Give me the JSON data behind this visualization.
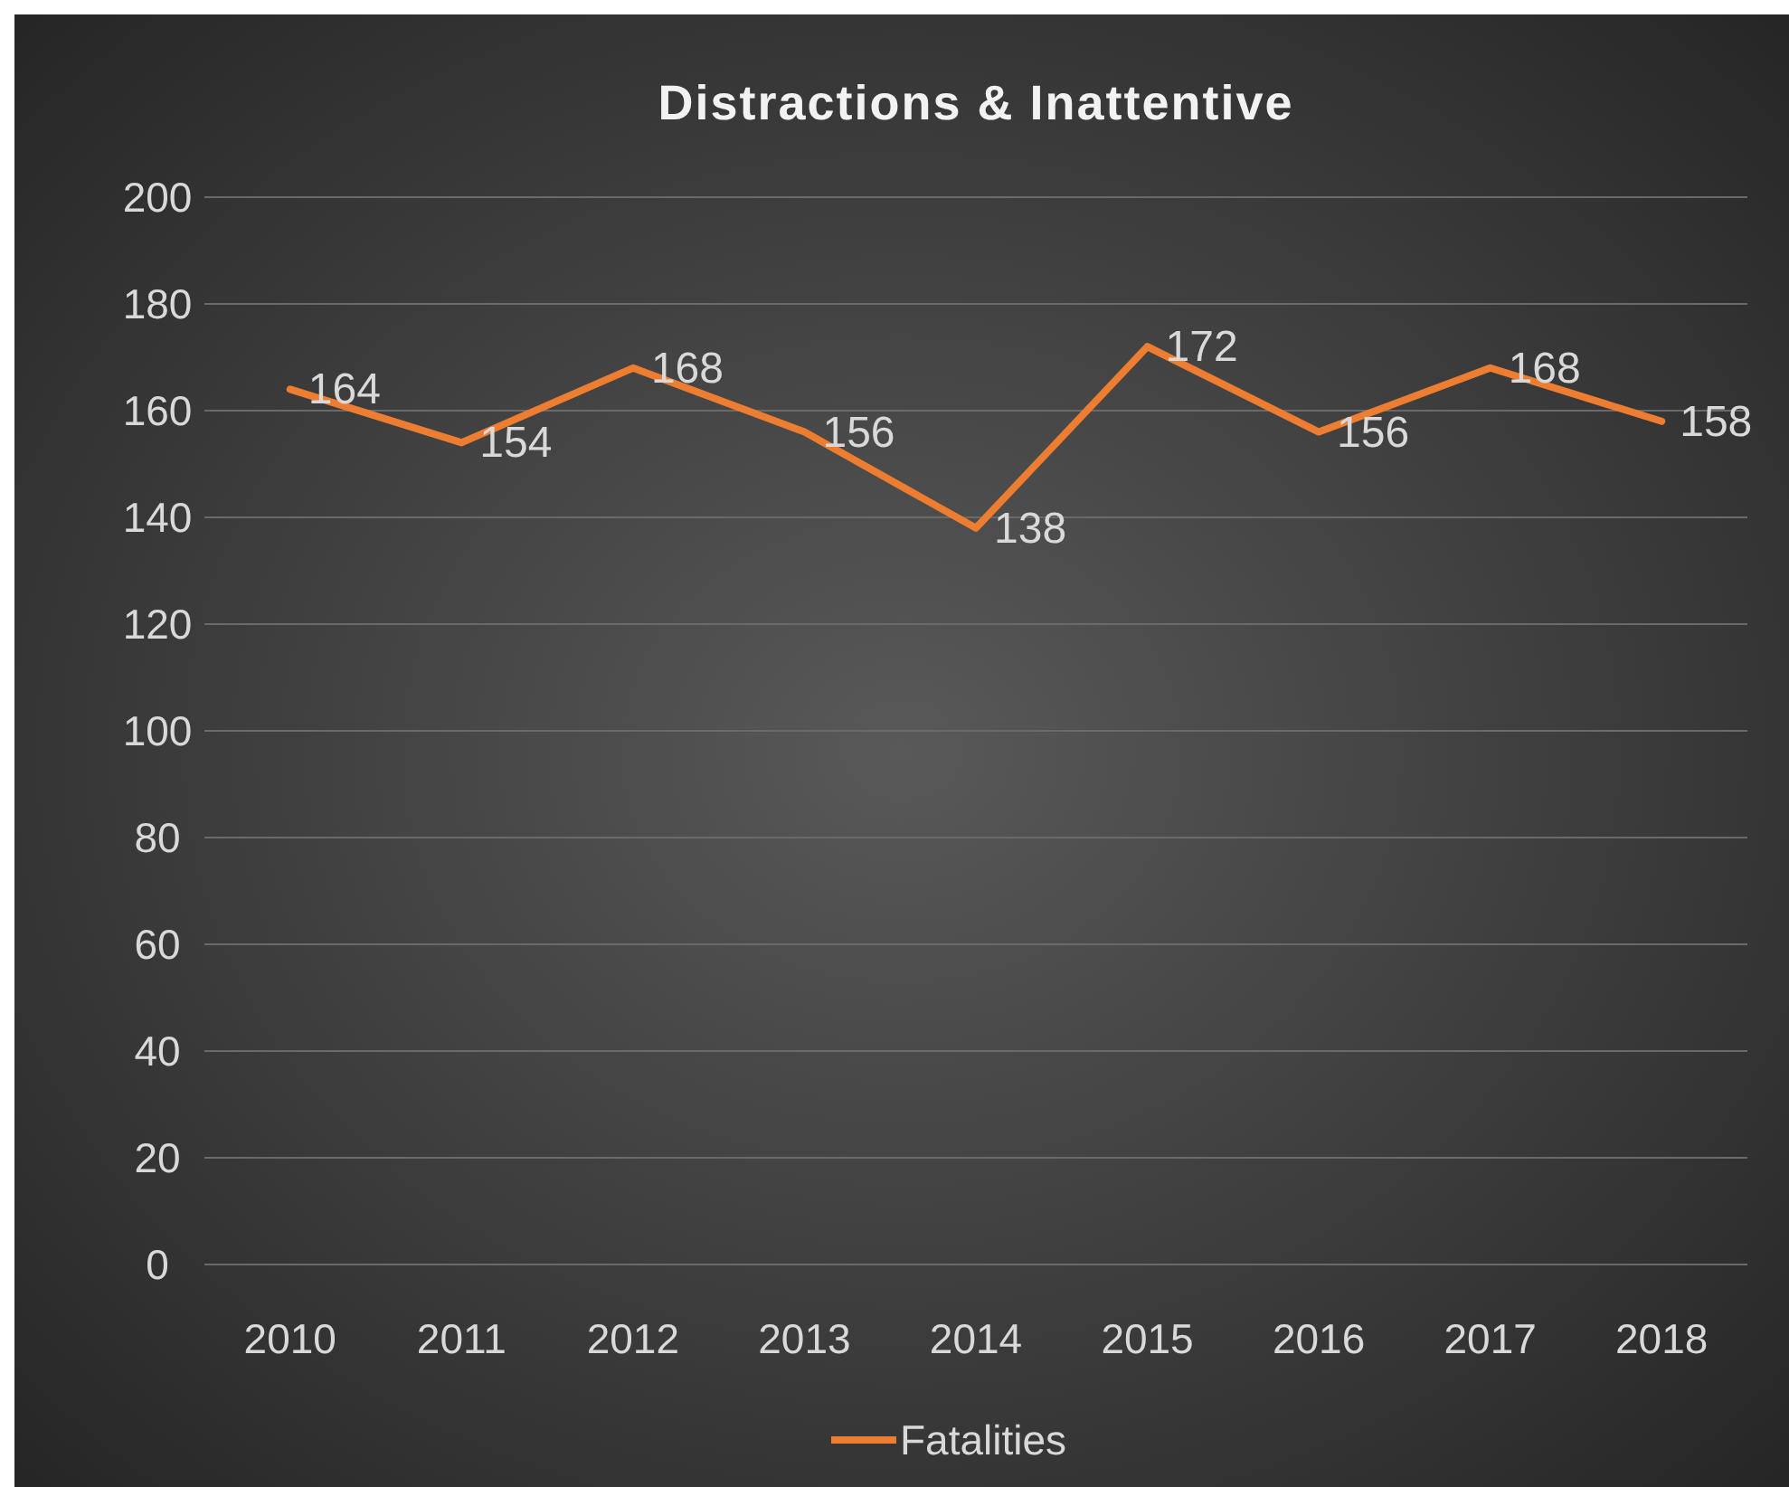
{
  "chart_data": {
    "type": "line",
    "title": "Distractions & Inattentive",
    "categories": [
      "2010",
      "2011",
      "2012",
      "2013",
      "2014",
      "2015",
      "2016",
      "2017",
      "2018"
    ],
    "series": [
      {
        "name": "Fatalities",
        "color": "#ed7d31",
        "values": [
          164,
          154,
          168,
          156,
          138,
          172,
          156,
          168,
          158
        ]
      }
    ],
    "ylim": [
      0,
      200
    ],
    "yticks": [
      0,
      20,
      40,
      60,
      80,
      100,
      120,
      140,
      160,
      180,
      200
    ],
    "grid": "y",
    "legend": "bottom",
    "data_labels": true,
    "marker": "none",
    "line_style": "solid"
  }
}
